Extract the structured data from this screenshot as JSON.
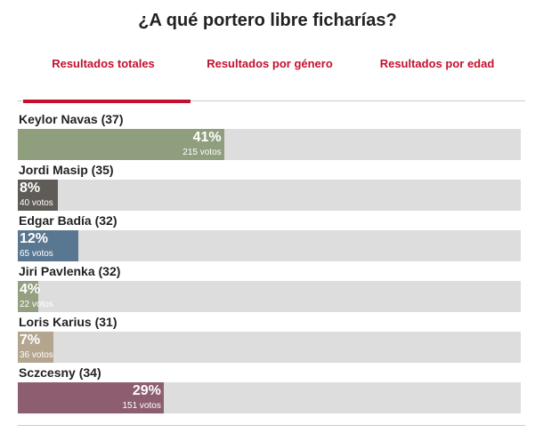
{
  "title": "¿A qué portero libre ficharías?",
  "tabs": [
    "Resultados totales",
    "Resultados por género",
    "Resultados por edad"
  ],
  "options": [
    {
      "name": "Keylor Navas (37)",
      "percent": 41,
      "percent_label": "41%",
      "votes_label": "215 votos",
      "color": "#8f9e7d"
    },
    {
      "name": "Jordi Masip (35)",
      "percent": 8,
      "percent_label": "8%",
      "votes_label": "40 votos",
      "color": "#5f5c57"
    },
    {
      "name": "Edgar Badía (32)",
      "percent": 12,
      "percent_label": "12%",
      "votes_label": "65 votos",
      "color": "#5a7791"
    },
    {
      "name": "Jiri Pavlenka (32)",
      "percent": 4,
      "percent_label": "4%",
      "votes_label": "22 votos",
      "color": "#939f7f"
    },
    {
      "name": "Loris Karius (31)",
      "percent": 7,
      "percent_label": "7%",
      "votes_label": "36 votos",
      "color": "#b4a58f"
    },
    {
      "name": "Sczcesny (34)",
      "percent": 29,
      "percent_label": "29%",
      "votes_label": "151 votos",
      "color": "#8c5e6f"
    }
  ]
}
